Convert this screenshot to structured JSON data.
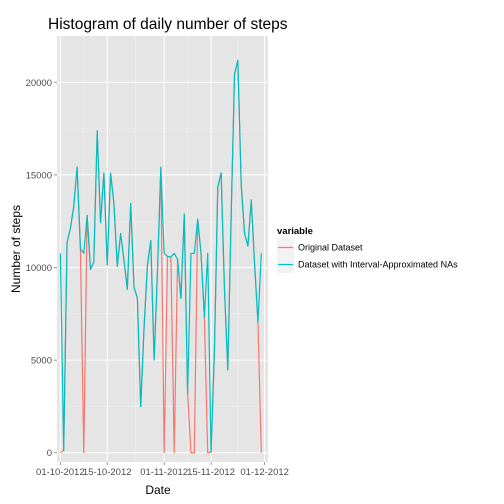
{
  "chart_data": {
    "type": "line",
    "title": "Histogram of daily number of steps",
    "xlabel": "Date",
    "ylabel": "Number of steps",
    "x_ticks": [
      "01-10-2012",
      "15-10-2012",
      "01-11-2012",
      "15-11-2012",
      "01-12-2012"
    ],
    "x_tick_days": [
      0,
      14,
      31,
      45,
      61
    ],
    "y_ticks": [
      0,
      5000,
      10000,
      15000,
      20000
    ],
    "xlim": [
      -1,
      62
    ],
    "ylim": [
      -500,
      22500
    ],
    "grid": true,
    "legend": {
      "title": "variable",
      "position": "right"
    },
    "x": [
      0,
      1,
      2,
      3,
      4,
      5,
      6,
      7,
      8,
      9,
      10,
      11,
      12,
      13,
      14,
      15,
      16,
      17,
      18,
      19,
      20,
      21,
      22,
      23,
      24,
      25,
      26,
      27,
      28,
      29,
      30,
      31,
      32,
      33,
      34,
      35,
      36,
      37,
      38,
      39,
      40,
      41,
      42,
      43,
      44,
      45,
      46,
      47,
      48,
      49,
      50,
      51,
      52,
      53,
      54,
      55,
      56,
      57,
      58,
      59,
      60
    ],
    "series": [
      {
        "name": "Original Dataset",
        "color": "#F8766D",
        "values": [
          0,
          126,
          11352,
          12116,
          13294,
          15420,
          11015,
          0,
          12811,
          9900,
          10304,
          17382,
          12426,
          15098,
          10139,
          15084,
          13452,
          10056,
          11829,
          10395,
          8821,
          13460,
          8918,
          8355,
          2492,
          6778,
          10119,
          11458,
          5018,
          9819,
          15414,
          0,
          10600,
          10571,
          0,
          10439,
          8334,
          12883,
          3219,
          0,
          0,
          12608,
          10765,
          7336,
          0,
          41,
          5441,
          14339,
          15110,
          8841,
          4472,
          12787,
          20427,
          21194,
          14478,
          11834,
          11162,
          13646,
          10183,
          7047,
          0
        ]
      },
      {
        "name": "Dataset with Interval-Approximated NAs",
        "color": "#00BFC4",
        "values": [
          10766,
          126,
          11352,
          12116,
          13294,
          15420,
          11015,
          10766,
          12811,
          9900,
          10304,
          17382,
          12426,
          15098,
          10139,
          15084,
          13452,
          10056,
          11829,
          10395,
          8821,
          13460,
          8918,
          8355,
          2492,
          6778,
          10119,
          11458,
          5018,
          9819,
          15414,
          10766,
          10600,
          10571,
          10766,
          10439,
          8334,
          12883,
          3219,
          10766,
          10766,
          12608,
          10765,
          7336,
          10766,
          41,
          5441,
          14339,
          15110,
          8841,
          4472,
          12787,
          20427,
          21194,
          14478,
          11834,
          11162,
          13646,
          10183,
          7047,
          10766
        ]
      }
    ]
  }
}
